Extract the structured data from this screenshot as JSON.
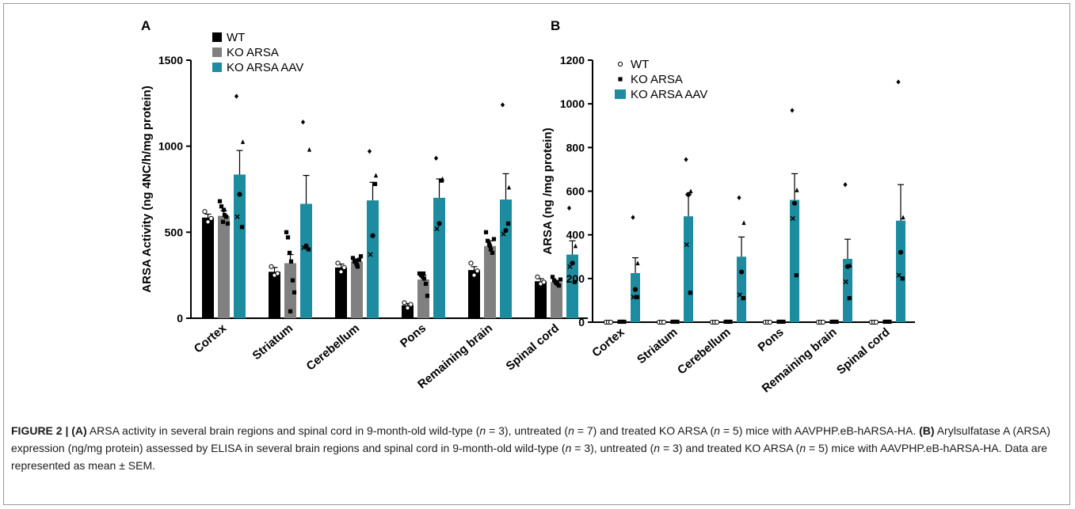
{
  "colors": {
    "wt": "#000000",
    "ko": "#808080",
    "aav": "#1d8ca0"
  },
  "chart_data": [
    {
      "panel": "A",
      "type": "bar",
      "ylabel": "ARSA Activity (ng 4NC/h/mg protein)",
      "ylim": [
        0,
        1500
      ],
      "yticks": [
        0,
        500,
        1000,
        1500
      ],
      "categories": [
        "Cortex",
        "Striatum",
        "Cerebellum",
        "Pons",
        "Remaining brain",
        "Spinal cord"
      ],
      "legend": [
        "WT",
        "KO ARSA",
        "KO ARSA AAV"
      ],
      "series": [
        {
          "name": "WT",
          "values": [
            585,
            270,
            295,
            75,
            280,
            215
          ],
          "sem": [
            20,
            25,
            20,
            10,
            20,
            15
          ],
          "points": [
            [
              620,
              560,
              580
            ],
            [
              300,
              250,
              260
            ],
            [
              320,
              270,
              295
            ],
            [
              90,
              60,
              80
            ],
            [
              320,
              250,
              275
            ],
            [
              240,
              200,
              210
            ]
          ]
        },
        {
          "name": "KO ARSA",
          "values": [
            595,
            320,
            330,
            225,
            420,
            210
          ],
          "sem": [
            30,
            50,
            15,
            25,
            30,
            10
          ],
          "points": [
            [
              680,
              650,
              560,
              600,
              590,
              550,
              630
            ],
            [
              500,
              470,
              380,
              330,
              220,
              150,
              40
            ],
            [
              350,
              330,
              320,
              300,
              340,
              360,
              310
            ],
            [
              260,
              250,
              240,
              230,
              200,
              130,
              260
            ],
            [
              500,
              450,
              430,
              400,
              380,
              460,
              420
            ],
            [
              240,
              220,
              210,
              200,
              190,
              225,
              205
            ]
          ]
        },
        {
          "name": "KO ARSA AAV",
          "values": [
            835,
            665,
            685,
            700,
            690,
            370
          ],
          "sem": [
            140,
            165,
            105,
            110,
            150,
            80
          ],
          "points": [
            [
              1290,
              1025,
              720,
              590,
              530
            ],
            [
              1140,
              980,
              420,
              410,
              400
            ],
            [
              970,
              830,
              480,
              370,
              780
            ],
            [
              930,
              810,
              550,
              520,
              800
            ],
            [
              1240,
              760,
              510,
              490,
              550
            ],
            [
              640,
              420,
              320,
              300,
              210
            ]
          ]
        }
      ]
    },
    {
      "panel": "B",
      "type": "bar",
      "ylabel": "ARSA (ng /mg protein)",
      "ylim": [
        0,
        1200
      ],
      "yticks": [
        0,
        200,
        400,
        600,
        800,
        1000,
        1200
      ],
      "categories": [
        "Cortex",
        "Striatum",
        "Cerebellum",
        "Pons",
        "Remaining brain",
        "Spinal cord"
      ],
      "legend": [
        "WT",
        "KO ARSA",
        "KO ARSA AAV"
      ],
      "series": [
        {
          "name": "WT",
          "values": [
            0,
            0,
            0,
            0,
            0,
            0
          ],
          "sem": [
            0,
            0,
            0,
            0,
            0,
            0
          ],
          "points": [
            [
              0,
              0,
              0
            ],
            [
              0,
              0,
              0
            ],
            [
              0,
              0,
              0
            ],
            [
              0,
              0,
              0
            ],
            [
              0,
              0,
              0
            ],
            [
              0,
              0,
              0
            ]
          ]
        },
        {
          "name": "KO ARSA",
          "values": [
            2,
            2,
            2,
            2,
            2,
            2
          ],
          "sem": [
            0,
            0,
            0,
            0,
            0,
            0
          ],
          "points": [
            [
              2,
              2,
              2
            ],
            [
              2,
              2,
              2
            ],
            [
              2,
              2,
              2
            ],
            [
              2,
              2,
              2
            ],
            [
              2,
              2,
              2
            ],
            [
              2,
              2,
              2
            ]
          ]
        },
        {
          "name": "KO ARSA AAV",
          "values": [
            225,
            485,
            300,
            560,
            290,
            465
          ],
          "sem": [
            70,
            100,
            90,
            120,
            90,
            165
          ],
          "points": [
            [
              480,
              270,
              150,
              115,
              115
            ],
            [
              745,
              600,
              585,
              355,
              135
            ],
            [
              570,
              455,
              230,
              125,
              110
            ],
            [
              970,
              605,
              545,
              475,
              215
            ],
            [
              630,
              260,
              255,
              185,
              110
            ],
            [
              1100,
              480,
              320,
              215,
              200
            ]
          ]
        }
      ]
    }
  ],
  "caption": {
    "lead": "FIGURE 2 | ",
    "a_label": "(A)",
    "a_text_1": " ARSA activity in several brain regions and spinal cord in 9-month-old wild-type (",
    "a_n1": "n",
    "a_text_2": " = 3), untreated (",
    "a_n2": "n",
    "a_text_3": " = 7) and treated KO ARSA (",
    "a_n3": "n",
    "a_text_4": " = 5) mice with AAVPHP.eB-hARSA-HA. ",
    "b_label": "(B)",
    "b_text_1": " Arylsulfatase A (ARSA) expression (ng/mg protein) assessed by ELISA in several brain regions and spinal cord in 9-month-old wild-type (",
    "b_n1": "n",
    "b_text_2": " = 3), untreated (",
    "b_n2": "n",
    "b_text_3": " = 3) and treated KO ARSA (",
    "b_n3": "n",
    "b_text_4": " = 5) mice with AAVPHP.eB-hARSA-HA. Data are represented as mean ± SEM."
  }
}
